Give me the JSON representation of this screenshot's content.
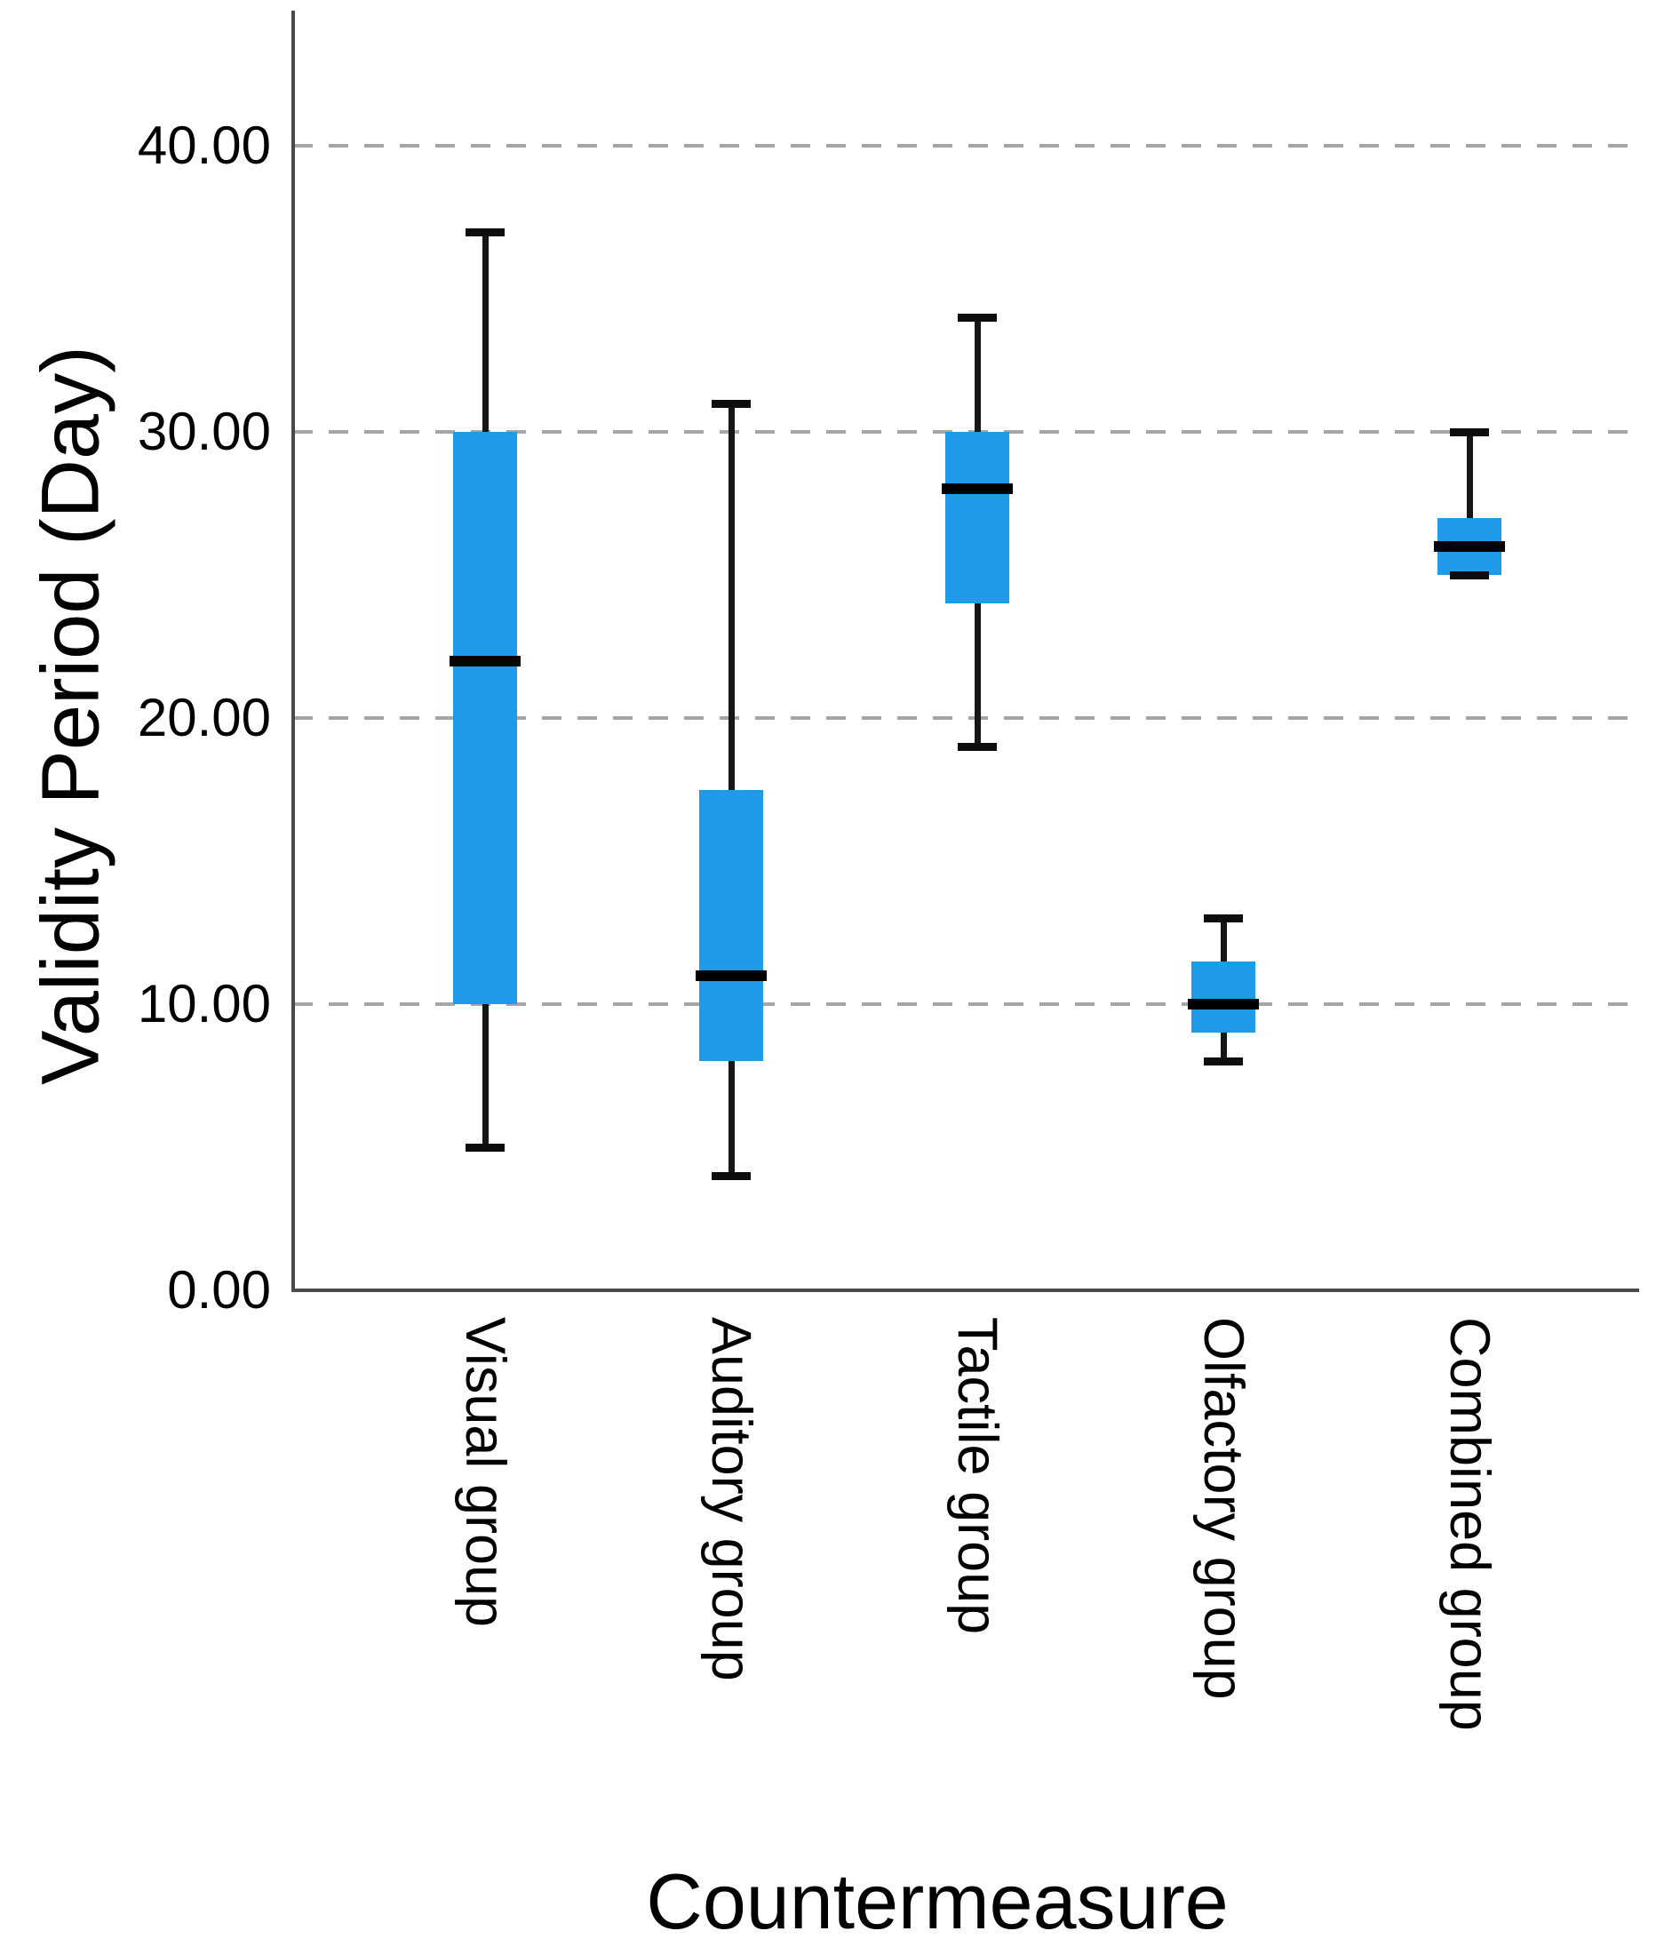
{
  "figure": {
    "background": "#ffffff"
  },
  "chart_data": {
    "type": "boxplot",
    "title": "",
    "xlabel": "Countermeasure",
    "ylabel": "Validity Period (Day)",
    "categories": [
      "Visual group",
      "Auditory group",
      "Tactile group",
      "Olfactory group",
      "Combined group"
    ],
    "series": [
      {
        "name": "Visual group",
        "min": 5,
        "q1": 10,
        "median": 22,
        "q3": 30,
        "max": 37
      },
      {
        "name": "Auditory group",
        "min": 4,
        "q1": 8,
        "median": 11,
        "q3": 17.5,
        "max": 31
      },
      {
        "name": "Tactile group",
        "min": 19,
        "q1": 24,
        "median": 28,
        "q3": 30,
        "max": 34
      },
      {
        "name": "Olfactory group",
        "min": 8,
        "q1": 9,
        "median": 10,
        "q3": 11.5,
        "max": 13
      },
      {
        "name": "Combined group",
        "min": 25,
        "q1": 25,
        "median": 26,
        "q3": 27,
        "max": 30
      }
    ],
    "yticks": {
      "values": [
        0,
        10,
        20,
        30,
        40
      ],
      "labels": [
        "0.00",
        "10.00",
        "20.00",
        "30.00",
        "40.00"
      ]
    },
    "ylim": [
      0,
      44.7
    ],
    "grid": "horizontal-dashed",
    "legend": "none",
    "colors": {
      "box_fill": "#1f9be9",
      "median": "#000000",
      "whisker": "#161616",
      "gridline": "#a6a6a6",
      "axis": "#4a4a4a",
      "text": "#000000"
    }
  }
}
